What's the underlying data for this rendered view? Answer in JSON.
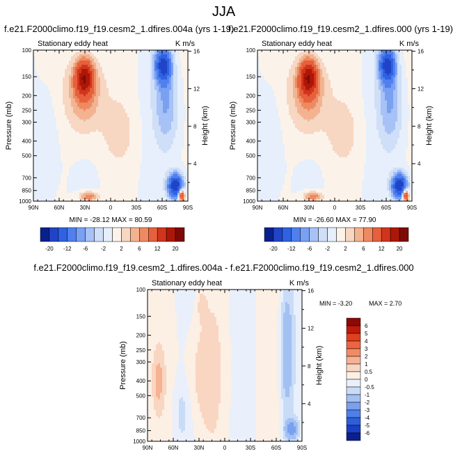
{
  "title": "JJA",
  "panels": [
    {
      "title": "f.e21.F2000climo.f19_f19.cesm2_1.dfires.004a (yrs 1-19)",
      "variable": "Stationary eddy heat",
      "units": "K m/s",
      "min_label": "MIN = -28.12",
      "max_label": "MAX = 80.59"
    },
    {
      "title": "f.e21.F2000climo.f19_f19.cesm2_1.dfires.000 (yrs 1-19)",
      "variable": "Stationary eddy heat",
      "units": "K m/s",
      "min_label": "MIN = -26.60",
      "max_label": "MAX = 77.90"
    },
    {
      "title": "f.e21.F2000climo.f19_f19.cesm2_1.dfires.004a - f.e21.F2000climo.f19_f19.cesm2_1.dfires.000",
      "variable": "Stationary eddy heat",
      "units": "K m/s",
      "min_label": "MIN = -3.20",
      "max_label": "MAX = 2.70"
    }
  ],
  "chart_data": [
    {
      "type": "heatmap",
      "title": "f.e21.F2000climo.f19_f19.cesm2_1.dfires.004a (yrs 1-19)",
      "ylabel": "Pressure (mb)",
      "y2label": "Height (km)",
      "x_ticks": [
        "90N",
        "60N",
        "30N",
        "0",
        "30S",
        "60S",
        "90S"
      ],
      "y_ticks": [
        "100",
        "150",
        "200",
        "250",
        "300",
        "400",
        "500",
        "700",
        "850",
        "1000"
      ],
      "y2_ticks": [
        "16",
        "12",
        "8",
        "4"
      ],
      "colorbar_labels": [
        "-20",
        "-12",
        "-6",
        "-2",
        "2",
        "6",
        "12",
        "20"
      ],
      "colorbar_colors": [
        "#0a1f8e",
        "#1f44c8",
        "#2f62e2",
        "#4f80ee",
        "#7aa0f2",
        "#a6c2f6",
        "#cfdff8",
        "#e6effb",
        "#fbf3ea",
        "#f7d6c2",
        "#f3b391",
        "#ee8a62",
        "#e6603c",
        "#d1341c",
        "#ad1708",
        "#7f0a05"
      ],
      "min": -28.12,
      "max": 80.59
    },
    {
      "type": "heatmap",
      "title": "f.e21.F2000climo.f19_f19.cesm2_1.dfires.000 (yrs 1-19)",
      "ylabel": "Pressure (mb)",
      "y2label": "Height (km)",
      "x_ticks": [
        "90N",
        "60N",
        "30N",
        "0",
        "30S",
        "60S",
        "90S"
      ],
      "y_ticks": [
        "100",
        "150",
        "200",
        "250",
        "300",
        "400",
        "500",
        "700",
        "850",
        "1000"
      ],
      "y2_ticks": [
        "16",
        "12",
        "8",
        "4"
      ],
      "colorbar_labels": [
        "-20",
        "-12",
        "-6",
        "-2",
        "2",
        "6",
        "12",
        "20"
      ],
      "colorbar_colors": [
        "#0a1f8e",
        "#1f44c8",
        "#2f62e2",
        "#4f80ee",
        "#7aa0f2",
        "#a6c2f6",
        "#cfdff8",
        "#e6effb",
        "#fbf3ea",
        "#f7d6c2",
        "#f3b391",
        "#ee8a62",
        "#e6603c",
        "#d1341c",
        "#ad1708",
        "#7f0a05"
      ],
      "min": -26.6,
      "max": 77.9
    },
    {
      "type": "heatmap",
      "title": "f.e21.F2000climo.f19_f19.cesm2_1.dfires.004a - f.e21.F2000climo.f19_f19.cesm2_1.dfires.000",
      "ylabel": "Pressure (mb)",
      "y2label": "Height (km)",
      "x_ticks": [
        "90N",
        "60N",
        "30N",
        "0",
        "30S",
        "60S",
        "90S"
      ],
      "y_ticks": [
        "100",
        "150",
        "200",
        "250",
        "300",
        "400",
        "500",
        "700",
        "850",
        "1000"
      ],
      "y2_ticks": [
        "16",
        "12",
        "8",
        "4"
      ],
      "colorbar_labels": [
        "6",
        "5",
        "4",
        "3",
        "2",
        "1",
        "0.5",
        "0",
        "-0.5",
        "-1",
        "-2",
        "-3",
        "-4",
        "-5",
        "-6"
      ],
      "colorbar_colors": [
        "#8c0a06",
        "#c01a0b",
        "#e0401e",
        "#ee6440",
        "#f28a66",
        "#f6b293",
        "#f9d6c2",
        "#fcefe4",
        "#e9f0fb",
        "#c9dcf7",
        "#a3c0f3",
        "#7aa0ee",
        "#4f7fe8",
        "#2d5fdc",
        "#1a3fc4",
        "#0c1f90"
      ],
      "min": -3.2,
      "max": 2.7
    }
  ]
}
